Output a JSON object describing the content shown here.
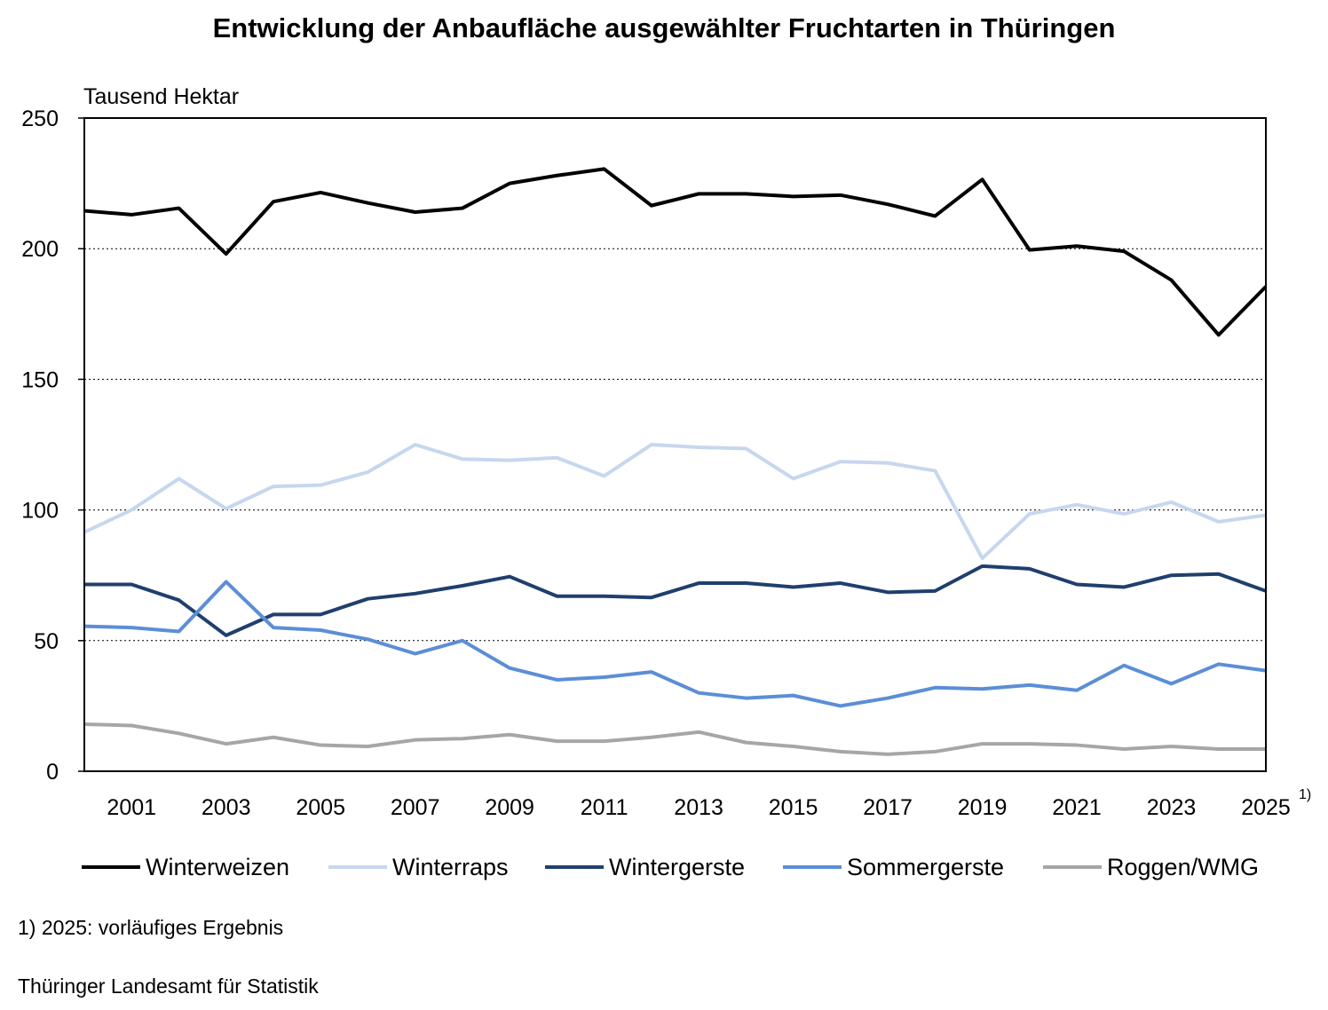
{
  "chart_data": {
    "type": "line",
    "title": "Entwicklung der Anbaufläche ausgewählter Fruchtarten in Thüringen",
    "ylabel": "Tausend Hektar",
    "xlabel": "",
    "x": [
      2000,
      2001,
      2002,
      2003,
      2004,
      2005,
      2006,
      2007,
      2008,
      2009,
      2010,
      2011,
      2012,
      2013,
      2014,
      2015,
      2016,
      2017,
      2018,
      2019,
      2020,
      2021,
      2022,
      2023,
      2024,
      2025
    ],
    "xlim": [
      2000,
      2025
    ],
    "ylim": [
      0,
      250
    ],
    "yticks": [
      0,
      50,
      100,
      150,
      200,
      250
    ],
    "xticks": [
      "2001",
      "2003",
      "2005",
      "2007",
      "2009",
      "2011",
      "2013",
      "2015",
      "2017",
      "2019",
      "2021",
      "2023",
      "2025"
    ],
    "xtick_footnote": "1)",
    "grid": "horizontal dotted",
    "legend_position": "bottom",
    "series": [
      {
        "name": "Winterweizen",
        "color": "#000000",
        "values": [
          214.5,
          213,
          215.5,
          198,
          218,
          221.5,
          217.5,
          214,
          215.5,
          225,
          228,
          230.5,
          216.5,
          221,
          221,
          220,
          220.5,
          217,
          212.5,
          226.5,
          199.5,
          201,
          199,
          188,
          167,
          185.5
        ]
      },
      {
        "name": "Winterraps",
        "color": "#c6d7ee",
        "values": [
          91.5,
          100,
          112,
          100.5,
          109,
          109.5,
          114.5,
          125,
          119.5,
          119,
          120,
          113,
          125,
          124,
          123.5,
          112,
          118.5,
          118,
          115,
          81.5,
          98.5,
          102,
          98.5,
          103,
          95.5,
          98
        ]
      },
      {
        "name": "Wintergerste",
        "color": "#1f3f6e",
        "values": [
          71.5,
          71.5,
          65.5,
          52,
          60,
          60,
          66,
          68,
          71,
          74.5,
          67,
          67,
          66.5,
          72,
          72,
          70.5,
          72,
          68.5,
          69,
          78.5,
          77.5,
          71.5,
          70.5,
          75,
          75.5,
          69
        ]
      },
      {
        "name": "Sommergerste",
        "color": "#5b8ed6",
        "values": [
          55.5,
          55,
          53.5,
          72.5,
          55,
          54,
          50.5,
          45,
          50,
          39.5,
          35,
          36,
          38,
          30,
          28,
          29,
          25,
          28,
          32,
          31.5,
          33,
          31,
          40.5,
          33.5,
          41,
          38.5
        ]
      },
      {
        "name": "Roggen/WMG",
        "color": "#a6a6a6",
        "values": [
          18,
          17.5,
          14.5,
          10.5,
          13,
          10,
          9.5,
          12,
          12.5,
          14,
          11.5,
          11.5,
          13,
          15,
          11,
          9.5,
          7.5,
          6.5,
          7.5,
          10.5,
          10.5,
          10,
          8.5,
          9.5,
          8.5,
          8.5
        ]
      }
    ]
  },
  "footnote": "1) 2025: vorläufiges Ergebnis",
  "source": "Thüringer Landesamt für Statistik"
}
